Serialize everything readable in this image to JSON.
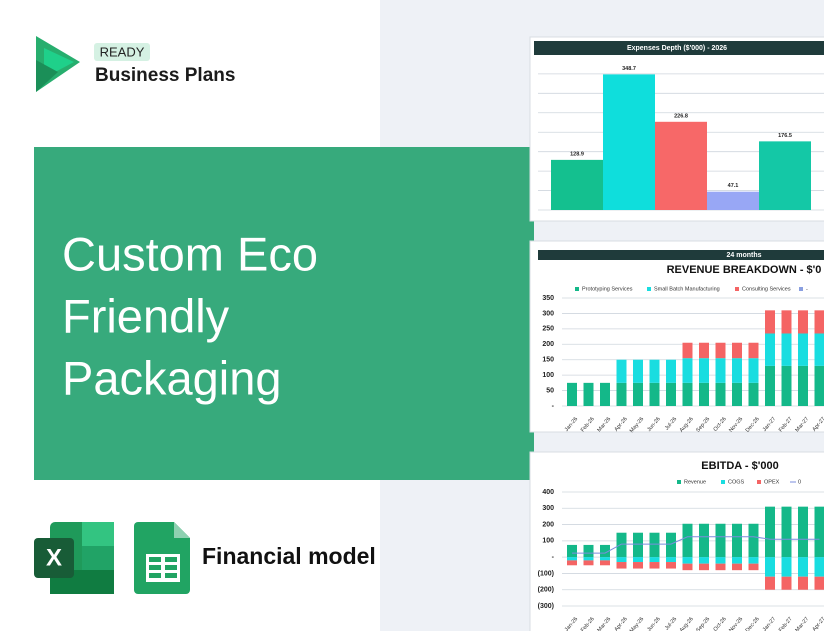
{
  "brand": {
    "badge": "READY",
    "name": "Business Plans"
  },
  "headline": [
    "Custom Eco",
    "Friendly",
    "Packaging"
  ],
  "footer": {
    "label": "Financial model"
  },
  "chart_data": [
    {
      "type": "bar",
      "title": "Expenses Depth ($'000) - 2026",
      "categories": [
        null,
        null,
        null,
        null,
        null
      ],
      "values": [
        128.9,
        348.7,
        226.8,
        47.1,
        176.5
      ],
      "value_labels": [
        "128.9",
        "348.7",
        "226.8",
        "47.1",
        "176.5"
      ],
      "colors": [
        "#14c08f",
        "#0fdedc",
        "#f76868",
        "#98a7f5",
        "#14c8a6"
      ],
      "ylim": [
        0,
        360
      ],
      "yticks": [
        0,
        50,
        100,
        150,
        200,
        250,
        300,
        350
      ],
      "tick_labels": false,
      "grid": true
    },
    {
      "type": "bar",
      "stacked": true,
      "subtitle": "24 months",
      "title": "REVENUE BREAKDOWN - $'0",
      "categories": [
        "Jan-26",
        "Feb-26",
        "Mar-26",
        "Apr-26",
        "May-26",
        "Jun-26",
        "Jul-26",
        "Aug-26",
        "Sep-26",
        "Oct-26",
        "Nov-26",
        "Dec-26",
        "Jan-27",
        "Feb-27",
        "Mar-27",
        "Apr-27"
      ],
      "series": [
        {
          "name": "Prototyping Services",
          "color": "#14b889",
          "values": [
            75,
            75,
            75,
            75,
            75,
            75,
            75,
            75,
            75,
            75,
            75,
            75,
            130,
            130,
            130,
            130
          ]
        },
        {
          "name": "Small Batch Manufacturing",
          "color": "#19dde0",
          "values": [
            0,
            0,
            0,
            75,
            75,
            75,
            75,
            80,
            80,
            80,
            80,
            80,
            105,
            105,
            105,
            105
          ]
        },
        {
          "name": "Consulting Services",
          "color": "#f46464",
          "values": [
            0,
            0,
            0,
            0,
            0,
            0,
            0,
            50,
            50,
            50,
            50,
            50,
            75,
            75,
            75,
            75
          ]
        },
        {
          "name": "-",
          "color": "#8a9fe0",
          "values": [
            0,
            0,
            0,
            0,
            0,
            0,
            0,
            0,
            0,
            0,
            0,
            0,
            0,
            0,
            0,
            0
          ]
        }
      ],
      "ylim": [
        0,
        350
      ],
      "yticks": [
        {
          "value": 0,
          "label": "-"
        },
        50,
        100,
        150,
        200,
        250,
        300,
        350
      ],
      "grid": true
    },
    {
      "type": "bar",
      "stacked": true,
      "title": "EBITDA - $'000",
      "categories": [
        "Jan-26",
        "Feb-26",
        "Mar-26",
        "Apr-26",
        "May-26",
        "Jun-26",
        "Jul-26",
        "Aug-26",
        "Sep-26",
        "Oct-26",
        "Nov-26",
        "Dec-26",
        "Jan-27",
        "Feb-27",
        "Mar-27",
        "Apr-27"
      ],
      "series": [
        {
          "name": "Revenue",
          "color": "#14b889",
          "values": [
            75,
            75,
            75,
            150,
            150,
            150,
            150,
            205,
            205,
            205,
            205,
            205,
            310,
            310,
            310,
            310
          ]
        },
        {
          "name": "COGS",
          "color": "#19dde0",
          "values": [
            -20,
            -20,
            -20,
            -30,
            -30,
            -30,
            -30,
            -40,
            -40,
            -40,
            -40,
            -40,
            -120,
            -120,
            -120,
            -120
          ]
        },
        {
          "name": "OPEX",
          "color": "#f46464",
          "values": [
            -30,
            -30,
            -30,
            -40,
            -40,
            -40,
            -40,
            -40,
            -40,
            -40,
            -40,
            -40,
            -80,
            -80,
            -80,
            -80
          ]
        },
        {
          "name": "0",
          "color": "#7b8cde",
          "type": "line",
          "values": [
            25,
            25,
            25,
            80,
            80,
            80,
            80,
            125,
            125,
            125,
            125,
            125,
            110,
            110,
            110,
            110
          ]
        }
      ],
      "ylim": [
        -300,
        400
      ],
      "yticks": [
        {
          "value": -300,
          "label": "(300)"
        },
        {
          "value": -200,
          "label": "(200)"
        },
        {
          "value": -100,
          "label": "(100)"
        },
        {
          "value": 0,
          "label": "-"
        },
        100,
        200,
        300,
        400
      ],
      "grid": true
    }
  ]
}
